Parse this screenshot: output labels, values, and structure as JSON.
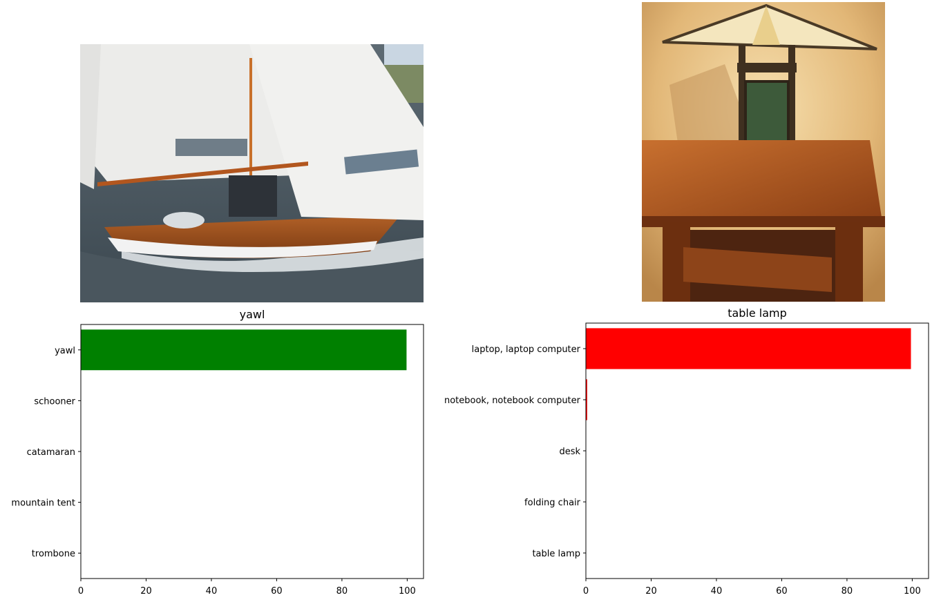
{
  "panels": [
    {
      "image_subject": "sailboat-photo",
      "title": "yawl",
      "chart_data": {
        "type": "bar",
        "orientation": "horizontal",
        "title": "yawl",
        "categories": [
          "yawl",
          "schooner",
          "catamaran",
          "mountain tent",
          "trombone"
        ],
        "values": [
          99.8,
          0.1,
          0.05,
          0.0,
          0.0
        ],
        "xlim": [
          0,
          105
        ],
        "xticks": [
          0,
          20,
          40,
          60,
          80,
          100
        ],
        "bar_color": "#008000",
        "grid": false,
        "legend": "none"
      }
    },
    {
      "image_subject": "table-lamp-photo",
      "title": "table lamp",
      "chart_data": {
        "type": "bar",
        "orientation": "horizontal",
        "title": "table lamp",
        "categories": [
          "laptop, laptop computer",
          "notebook, notebook computer",
          "desk",
          "folding chair",
          "table lamp"
        ],
        "values": [
          99.6,
          0.4,
          0.0,
          0.0,
          0.0
        ],
        "xlim": [
          0,
          105
        ],
        "xticks": [
          0,
          20,
          40,
          60,
          80,
          100
        ],
        "bar_color": "#ff0000",
        "grid": false,
        "legend": "none"
      }
    }
  ]
}
